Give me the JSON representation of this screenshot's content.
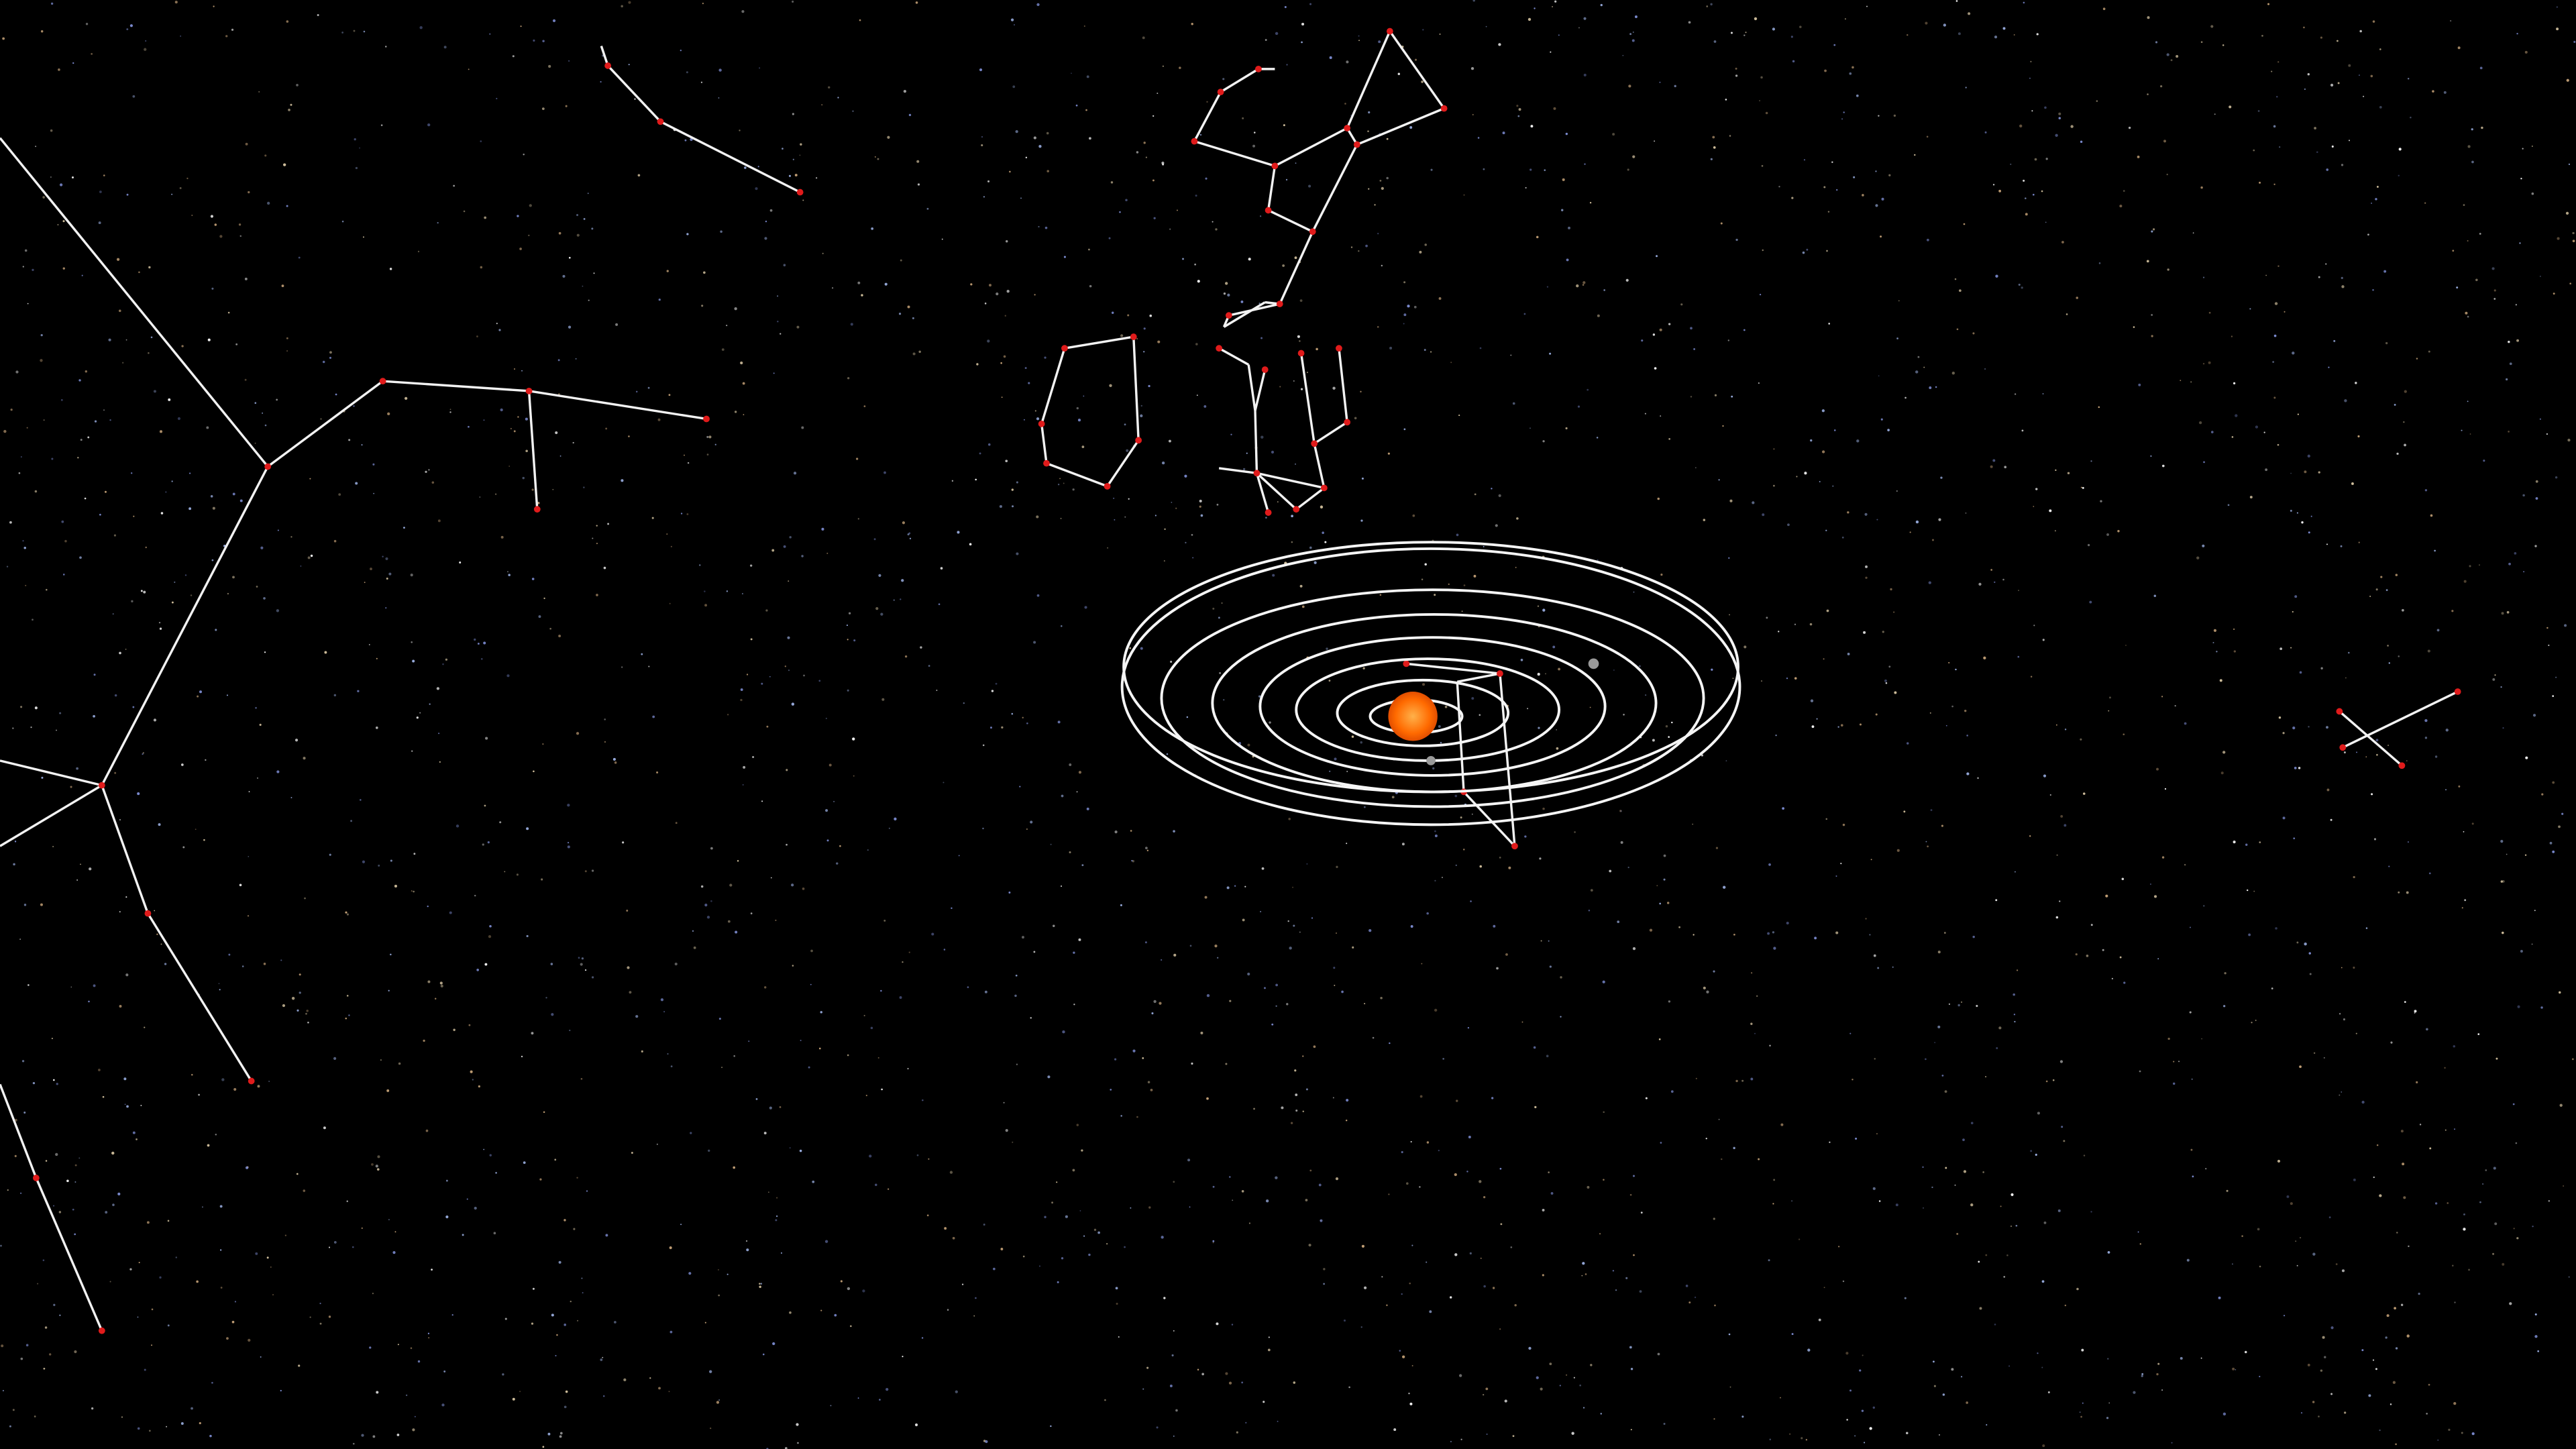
{
  "colors": {
    "background": "#000000",
    "constellation_line": "#f2f2f2",
    "constellation_star": "#e01b1b",
    "orbit_line": "#f5f5f5",
    "sun": "#ff6a00",
    "sun_glow": "#ffb14a",
    "planet": "#9a9a9a",
    "starfield": [
      "#ffffff",
      "#d9c7a3",
      "#9fb4e8",
      "#c9a57a",
      "#7f8fd6"
    ]
  },
  "scene": {
    "icon": "solar-system-icon",
    "sun": {
      "name": "sun",
      "icon": "sun-icon"
    },
    "orbits": [
      {
        "name": "orbit-1"
      },
      {
        "name": "orbit-2"
      },
      {
        "name": "orbit-3"
      },
      {
        "name": "orbit-4"
      },
      {
        "name": "orbit-5"
      },
      {
        "name": "orbit-6"
      },
      {
        "name": "orbit-7"
      },
      {
        "name": "orbit-8"
      }
    ],
    "planets": [
      {
        "name": "planet-near-sun",
        "icon": "planet-icon"
      },
      {
        "name": "planet-outer-right",
        "icon": "planet-icon"
      }
    ],
    "constellations": [
      {
        "name": "constellation-left-large",
        "icon": "constellation-icon"
      },
      {
        "name": "constellation-top-left",
        "icon": "constellation-icon"
      },
      {
        "name": "constellation-top-center",
        "icon": "constellation-icon"
      },
      {
        "name": "constellation-pentagon",
        "icon": "constellation-icon"
      },
      {
        "name": "constellation-center-tall",
        "icon": "constellation-icon"
      },
      {
        "name": "constellation-over-sun",
        "icon": "constellation-icon"
      },
      {
        "name": "constellation-right-small",
        "icon": "constellation-icon"
      }
    ]
  }
}
